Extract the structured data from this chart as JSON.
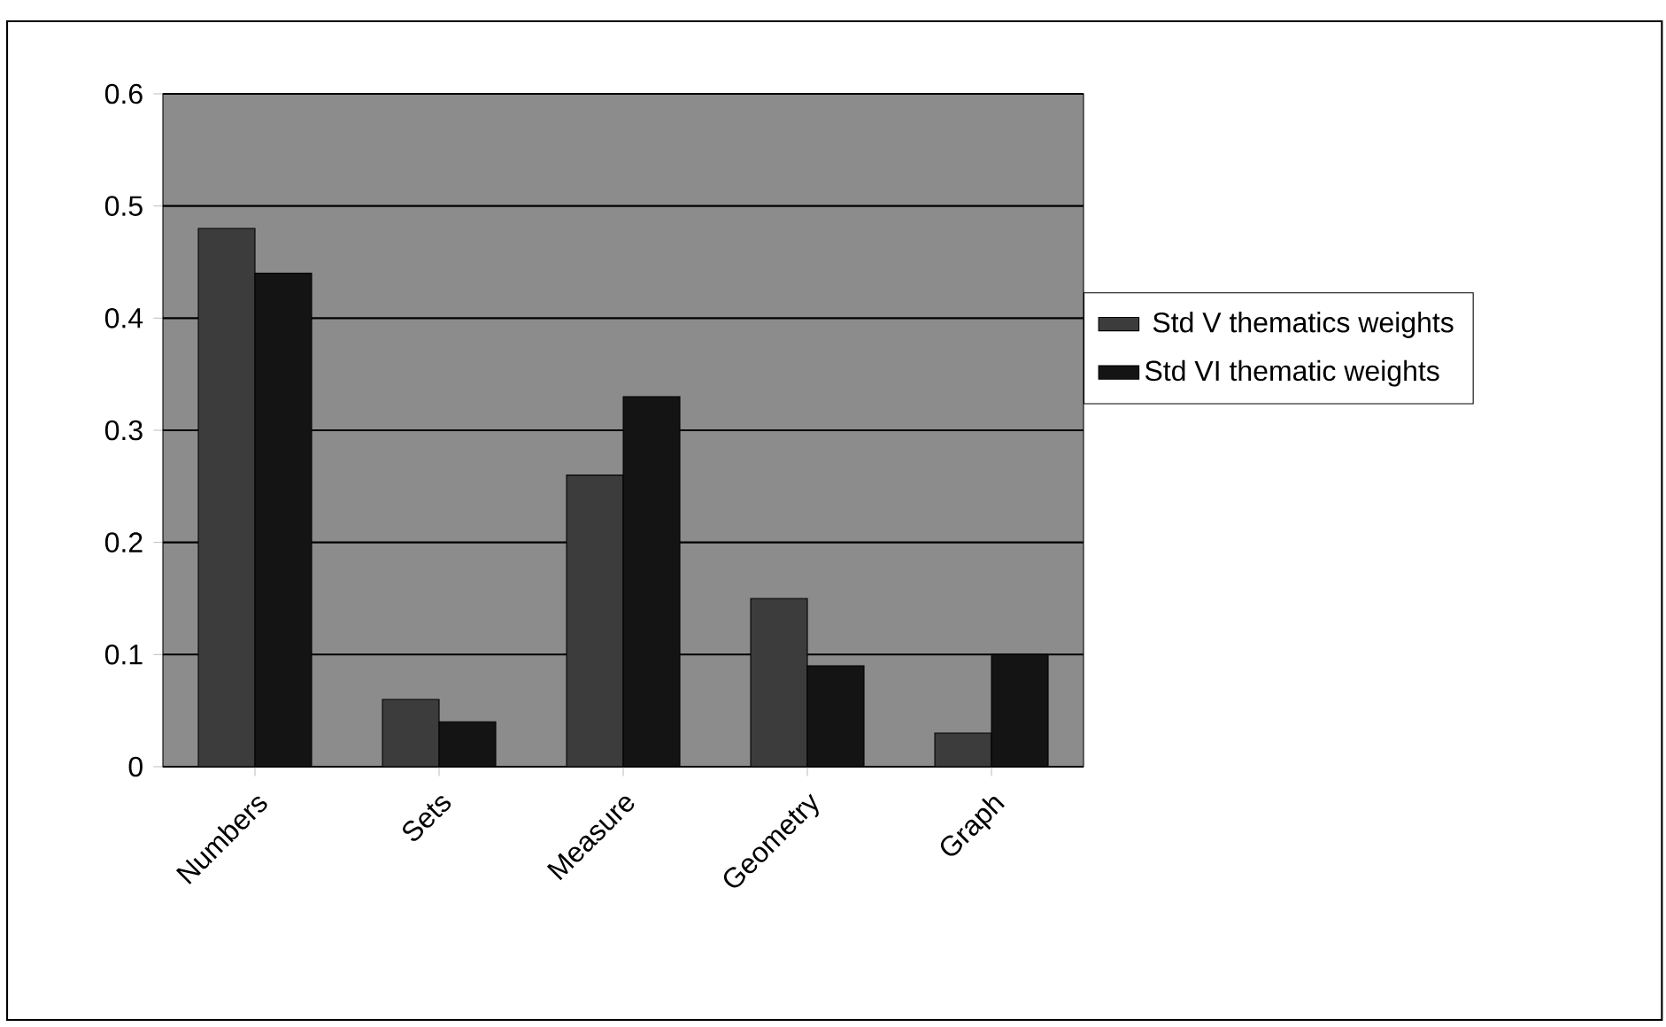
{
  "chart_data": {
    "type": "bar",
    "categories": [
      "Numbers",
      "Sets",
      "Measure",
      "Geometry",
      "Graph"
    ],
    "series": [
      {
        "name": " Std V thematics weights",
        "color": "#3c3c3c",
        "values": [
          0.48,
          0.06,
          0.26,
          0.15,
          0.03
        ]
      },
      {
        "name": "Std VI thematic weights",
        "color": "#141414",
        "values": [
          0.44,
          0.04,
          0.33,
          0.09,
          0.1
        ]
      }
    ],
    "ylim": [
      0,
      0.6
    ],
    "yticks": [
      0,
      0.1,
      0.2,
      0.3,
      0.4,
      0.5,
      0.6
    ],
    "grid": "y",
    "legend": "right"
  }
}
